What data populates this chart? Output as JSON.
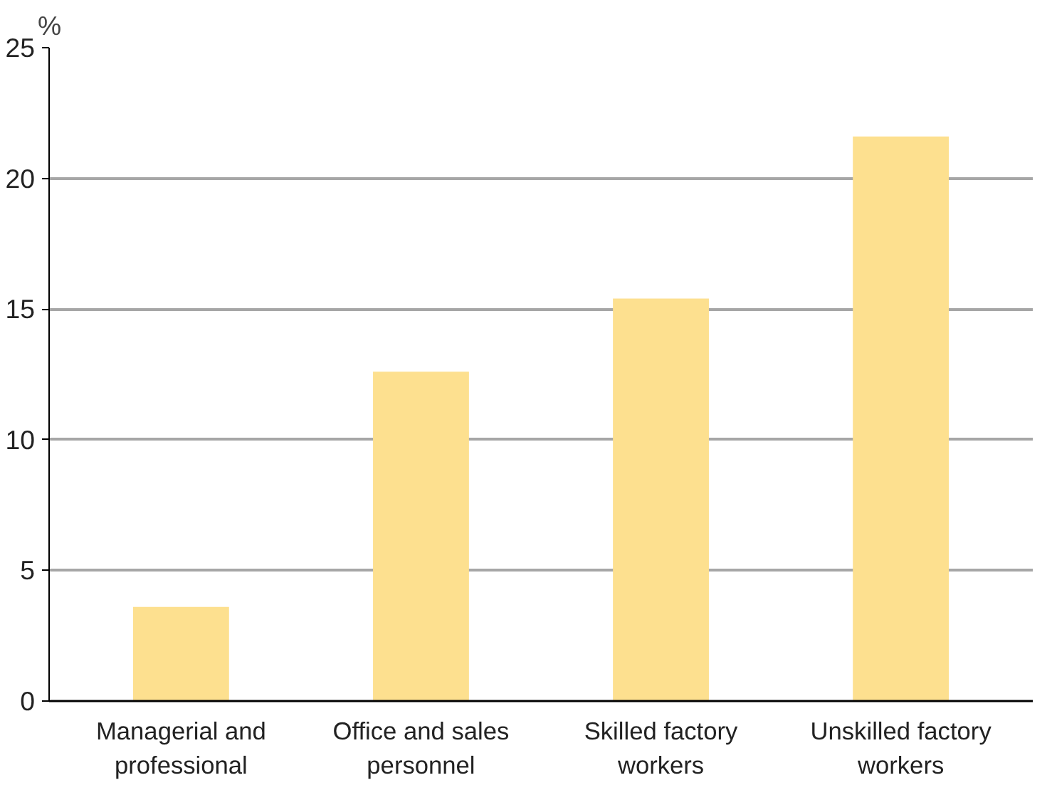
{
  "chart_data": {
    "type": "bar",
    "ylabel": "%",
    "categories": [
      "Managerial and professional",
      "Office and sales personnel",
      "Skilled factory workers",
      "Unskilled factory workers"
    ],
    "values": [
      3.6,
      12.6,
      15.4,
      21.6
    ],
    "color": "#fde08f",
    "ylim": [
      0,
      25
    ],
    "yticks": [
      0,
      5,
      10,
      15,
      20,
      25
    ],
    "grid": "y"
  }
}
